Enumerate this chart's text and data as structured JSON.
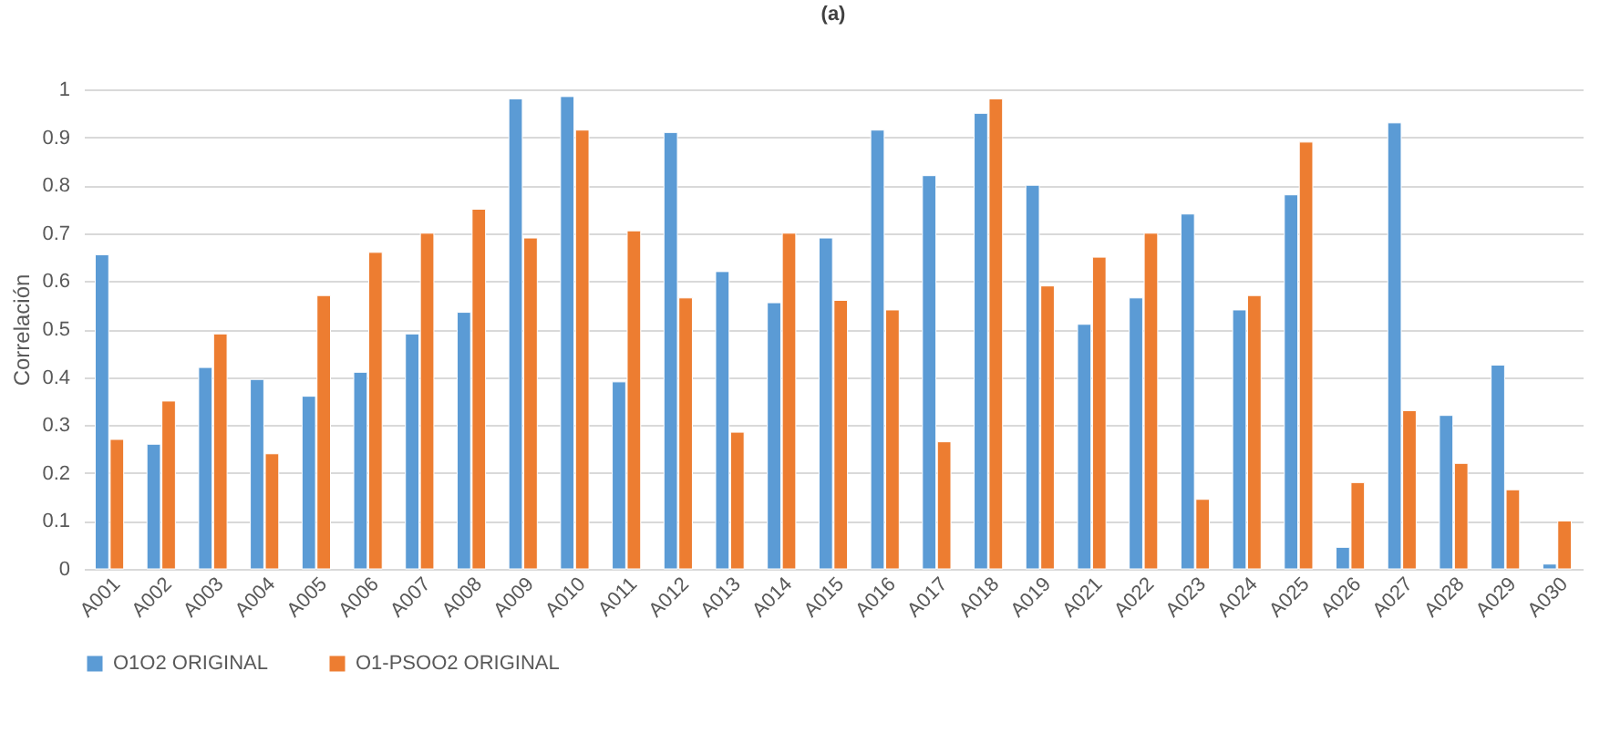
{
  "chart_data": {
    "type": "bar",
    "title": "(a)",
    "ylabel": "Correlación",
    "categories": [
      "A001",
      "A002",
      "A003",
      "A004",
      "A005",
      "A006",
      "A007",
      "A008",
      "A009",
      "A010",
      "A011",
      "A012",
      "A013",
      "A014",
      "A015",
      "A016",
      "A017",
      "A018",
      "A019",
      "A021",
      "A022",
      "A023",
      "A024",
      "A025",
      "A026",
      "A027",
      "A028",
      "A029",
      "A030"
    ],
    "series": [
      {
        "name": "O1O2 ORIGINAL",
        "color": "#5b9bd5",
        "values": [
          0.655,
          0.26,
          0.42,
          0.395,
          0.36,
          0.41,
          0.49,
          0.535,
          0.98,
          0.985,
          0.39,
          0.91,
          0.62,
          0.555,
          0.69,
          0.915,
          0.82,
          0.95,
          0.8,
          0.51,
          0.565,
          0.74,
          0.54,
          0.78,
          0.045,
          0.93,
          0.32,
          0.425,
          0.01
        ]
      },
      {
        "name": "O1-PSOO2 ORIGINAL",
        "color": "#ed7d31",
        "values": [
          0.27,
          0.35,
          0.49,
          0.24,
          0.57,
          0.66,
          0.7,
          0.75,
          0.69,
          0.915,
          0.705,
          0.565,
          0.285,
          0.7,
          0.56,
          0.54,
          0.265,
          0.98,
          0.59,
          0.65,
          0.7,
          0.145,
          0.57,
          0.89,
          0.18,
          0.33,
          0.22,
          0.165,
          0.1
        ]
      }
    ],
    "ylim": [
      0,
      1
    ],
    "yticks": [
      0,
      0.1,
      0.2,
      0.3,
      0.4,
      0.5,
      0.6,
      0.7,
      0.8,
      0.9,
      1
    ],
    "grid": "y",
    "legend": "bottom"
  }
}
